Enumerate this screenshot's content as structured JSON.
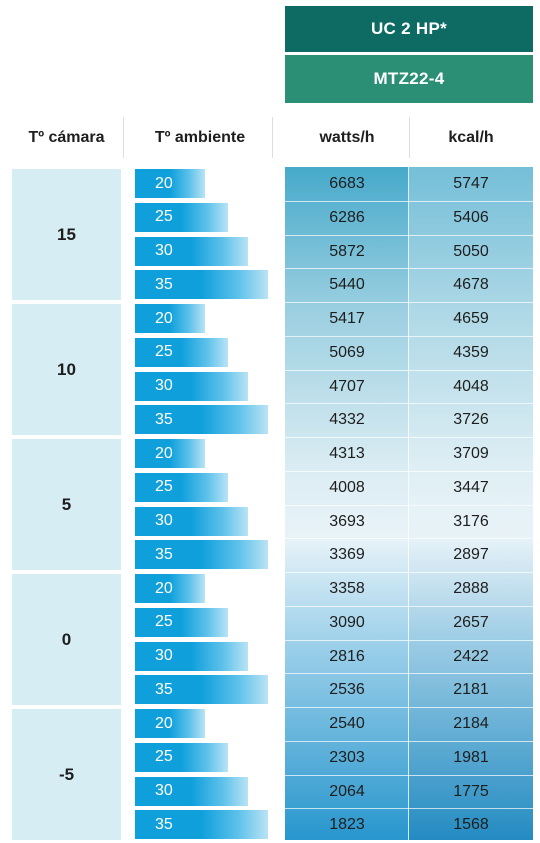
{
  "header": {
    "model_title": "UC 2 HP*",
    "compressor": "MTZ22-4"
  },
  "columns": {
    "camara": "Tº cámara",
    "ambiente": "Tº ambiente",
    "watts": "watts/h",
    "kcal": "kcal/h"
  },
  "colors": {
    "header_dark": "#0e6b64",
    "header_green": "#2a8f75",
    "bar_blue": "#0fa0dc",
    "block_bg": "#d6edf3"
  },
  "chart_data": {
    "type": "table",
    "ambient_values": [
      "20",
      "25",
      "30",
      "35"
    ],
    "groups": [
      {
        "camara": "15",
        "rows": [
          {
            "ambiente": "20",
            "watts": "6683",
            "kcal": "5747"
          },
          {
            "ambiente": "25",
            "watts": "6286",
            "kcal": "5406"
          },
          {
            "ambiente": "30",
            "watts": "5872",
            "kcal": "5050"
          },
          {
            "ambiente": "35",
            "watts": "5440",
            "kcal": "4678"
          }
        ]
      },
      {
        "camara": "10",
        "rows": [
          {
            "ambiente": "20",
            "watts": "5417",
            "kcal": "4659"
          },
          {
            "ambiente": "25",
            "watts": "5069",
            "kcal": "4359"
          },
          {
            "ambiente": "30",
            "watts": "4707",
            "kcal": "4048"
          },
          {
            "ambiente": "35",
            "watts": "4332",
            "kcal": "3726"
          }
        ]
      },
      {
        "camara": "5",
        "rows": [
          {
            "ambiente": "20",
            "watts": "4313",
            "kcal": "3709"
          },
          {
            "ambiente": "25",
            "watts": "4008",
            "kcal": "3447"
          },
          {
            "ambiente": "30",
            "watts": "3693",
            "kcal": "3176"
          },
          {
            "ambiente": "35",
            "watts": "3369",
            "kcal": "2897"
          }
        ]
      },
      {
        "camara": "0",
        "rows": [
          {
            "ambiente": "20",
            "watts": "3358",
            "kcal": "2888"
          },
          {
            "ambiente": "25",
            "watts": "3090",
            "kcal": "2657"
          },
          {
            "ambiente": "30",
            "watts": "2816",
            "kcal": "2422"
          },
          {
            "ambiente": "35",
            "watts": "2536",
            "kcal": "2181"
          }
        ]
      },
      {
        "camara": "-5",
        "rows": [
          {
            "ambiente": "20",
            "watts": "2540",
            "kcal": "2184"
          },
          {
            "ambiente": "25",
            "watts": "2303",
            "kcal": "1981"
          },
          {
            "ambiente": "30",
            "watts": "2064",
            "kcal": "1775"
          },
          {
            "ambiente": "35",
            "watts": "1823",
            "kcal": "1568"
          }
        ]
      }
    ]
  }
}
